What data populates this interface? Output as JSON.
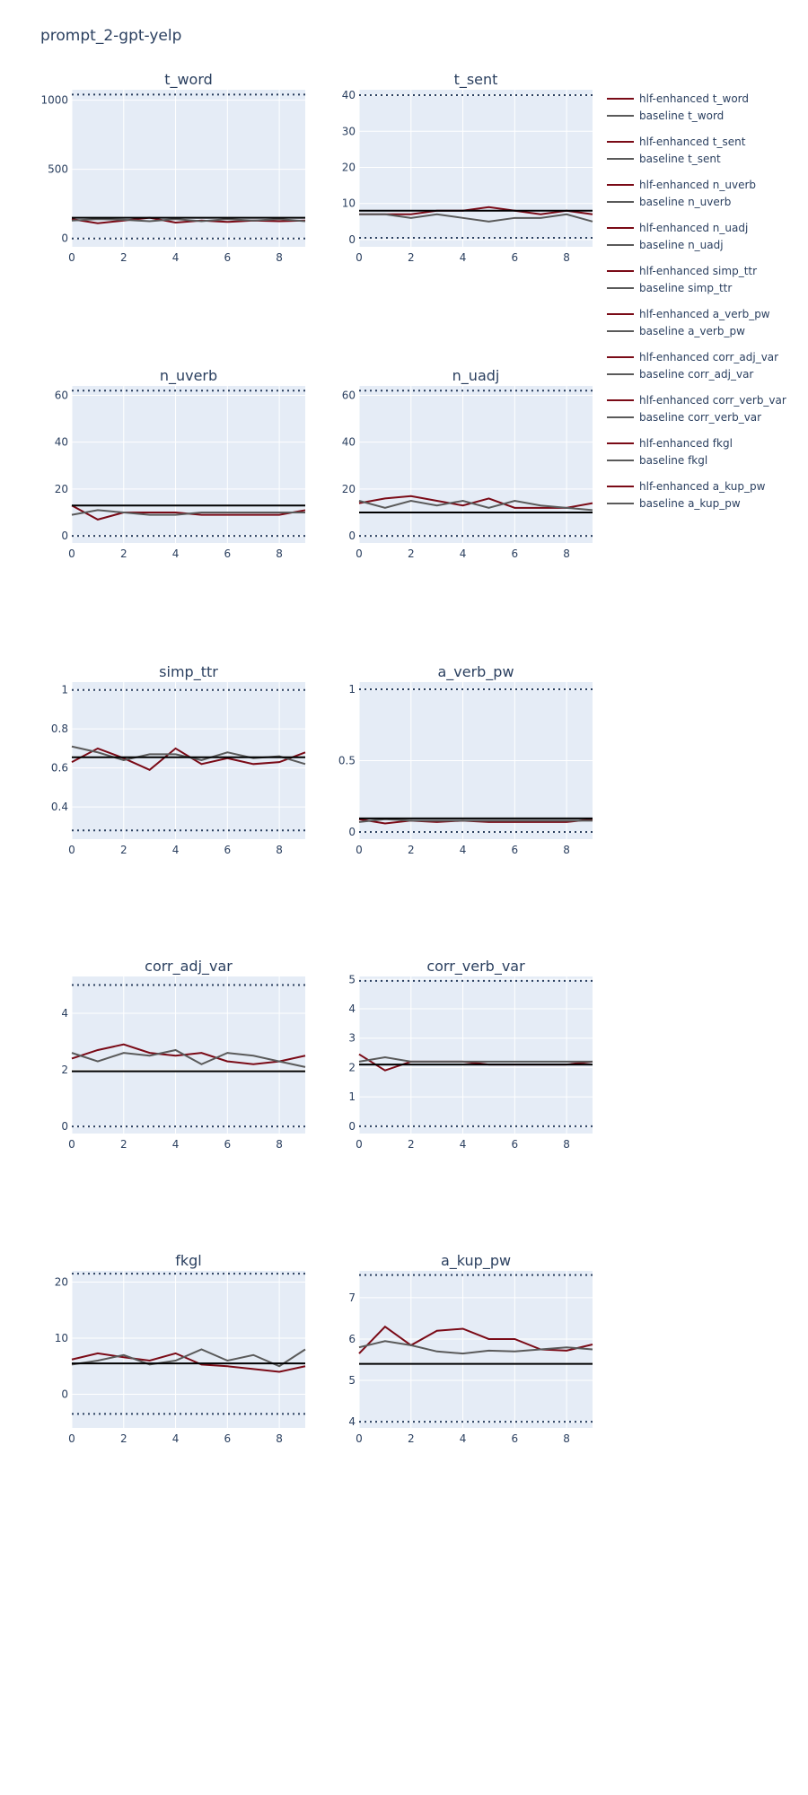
{
  "page_title": "prompt_2-gpt-yelp",
  "colors": {
    "plot_bg": "#e5ecf6",
    "grid": "#ffffff",
    "hlf": "#7a0a16",
    "baseline": "#5a5a5a",
    "reference": "#000000",
    "bounds": "#2a3f5f",
    "text": "#2a3f5f"
  },
  "chart_data": [
    {
      "type": "line",
      "title": "t_word",
      "x": [
        0,
        1,
        2,
        3,
        4,
        5,
        6,
        7,
        8,
        9
      ],
      "xticks": [
        0,
        2,
        4,
        6,
        8
      ],
      "xlim": [
        0,
        9
      ],
      "yticks": [
        0,
        500,
        1000
      ],
      "ytick_labels": [
        "0",
        "500",
        "1000"
      ],
      "ylim": [
        -60,
        1075
      ],
      "reference_line": 150,
      "bounds": [
        0,
        1040
      ],
      "series": [
        {
          "name": "hlf-enhanced t_word",
          "values": [
            140,
            110,
            130,
            150,
            115,
            130,
            120,
            130,
            125,
            130
          ]
        },
        {
          "name": "baseline t_word",
          "values": [
            130,
            140,
            135,
            125,
            140,
            125,
            140,
            130,
            140,
            125
          ]
        }
      ]
    },
    {
      "type": "line",
      "title": "t_sent",
      "x": [
        0,
        1,
        2,
        3,
        4,
        5,
        6,
        7,
        8,
        9
      ],
      "xticks": [
        0,
        2,
        4,
        6,
        8
      ],
      "xlim": [
        0,
        9
      ],
      "yticks": [
        0,
        10,
        20,
        30,
        40
      ],
      "ytick_labels": [
        "0",
        "10",
        "20",
        "30",
        "40"
      ],
      "ylim": [
        -2,
        41.5
      ],
      "reference_line": 8,
      "bounds": [
        0.5,
        40
      ],
      "series": [
        {
          "name": "hlf-enhanced t_sent",
          "values": [
            7,
            7,
            7,
            8,
            8,
            9,
            8,
            7,
            8,
            7
          ]
        },
        {
          "name": "baseline t_sent",
          "values": [
            7,
            7,
            6,
            7,
            6,
            5,
            6,
            6,
            7,
            5
          ]
        }
      ]
    },
    {
      "type": "line",
      "title": "n_uverb",
      "x": [
        0,
        1,
        2,
        3,
        4,
        5,
        6,
        7,
        8,
        9
      ],
      "xticks": [
        0,
        2,
        4,
        6,
        8
      ],
      "xlim": [
        0,
        9
      ],
      "yticks": [
        0,
        20,
        40,
        60
      ],
      "ytick_labels": [
        "0",
        "20",
        "40",
        "60"
      ],
      "ylim": [
        -3,
        64
      ],
      "reference_line": 13,
      "bounds": [
        0,
        62
      ],
      "series": [
        {
          "name": "hlf-enhanced n_uverb",
          "values": [
            13,
            7,
            10,
            10,
            10,
            9,
            9,
            9,
            9,
            11
          ]
        },
        {
          "name": "baseline n_uverb",
          "values": [
            9,
            11,
            10,
            9,
            9,
            10,
            10,
            10,
            10,
            10
          ]
        }
      ]
    },
    {
      "type": "line",
      "title": "n_uadj",
      "x": [
        0,
        1,
        2,
        3,
        4,
        5,
        6,
        7,
        8,
        9
      ],
      "xticks": [
        0,
        2,
        4,
        6,
        8
      ],
      "xlim": [
        0,
        9
      ],
      "yticks": [
        0,
        20,
        40,
        60
      ],
      "ytick_labels": [
        "0",
        "20",
        "40",
        "60"
      ],
      "ylim": [
        -3,
        64
      ],
      "reference_line": 10,
      "bounds": [
        0,
        62
      ],
      "series": [
        {
          "name": "hlf-enhanced n_uadj",
          "values": [
            14,
            16,
            17,
            15,
            13,
            16,
            12,
            12,
            12,
            14
          ]
        },
        {
          "name": "baseline n_uadj",
          "values": [
            15,
            12,
            15,
            13,
            15,
            12,
            15,
            13,
            12,
            11
          ]
        }
      ]
    },
    {
      "type": "line",
      "title": "simp_ttr",
      "x": [
        0,
        1,
        2,
        3,
        4,
        5,
        6,
        7,
        8,
        9
      ],
      "xticks": [
        0,
        2,
        4,
        6,
        8
      ],
      "xlim": [
        0,
        9
      ],
      "yticks": [
        0.4,
        0.6,
        0.8,
        1
      ],
      "ytick_labels": [
        "0.4",
        "0.6",
        "0.8",
        "1"
      ],
      "ylim": [
        0.235,
        1.04
      ],
      "reference_line": 0.655,
      "bounds": [
        0.28,
        1.0
      ],
      "series": [
        {
          "name": "hlf-enhanced simp_ttr",
          "values": [
            0.63,
            0.7,
            0.65,
            0.59,
            0.7,
            0.62,
            0.65,
            0.62,
            0.63,
            0.68
          ]
        },
        {
          "name": "baseline simp_ttr",
          "values": [
            0.71,
            0.68,
            0.64,
            0.67,
            0.67,
            0.64,
            0.68,
            0.65,
            0.66,
            0.62
          ]
        }
      ]
    },
    {
      "type": "line",
      "title": "a_verb_pw",
      "x": [
        0,
        1,
        2,
        3,
        4,
        5,
        6,
        7,
        8,
        9
      ],
      "xticks": [
        0,
        2,
        4,
        6,
        8
      ],
      "xlim": [
        0,
        9
      ],
      "yticks": [
        0,
        0.5,
        1
      ],
      "ytick_labels": [
        "0",
        "0.5",
        "1"
      ],
      "ylim": [
        -0.05,
        1.05
      ],
      "reference_line": 0.095,
      "bounds": [
        0,
        1
      ],
      "series": [
        {
          "name": "hlf-enhanced a_verb_pw",
          "values": [
            0.09,
            0.06,
            0.08,
            0.07,
            0.08,
            0.07,
            0.07,
            0.07,
            0.07,
            0.09
          ]
        },
        {
          "name": "baseline a_verb_pw",
          "values": [
            0.07,
            0.09,
            0.08,
            0.08,
            0.08,
            0.08,
            0.08,
            0.08,
            0.08,
            0.08
          ]
        }
      ]
    },
    {
      "type": "line",
      "title": "corr_adj_var",
      "x": [
        0,
        1,
        2,
        3,
        4,
        5,
        6,
        7,
        8,
        9
      ],
      "xticks": [
        0,
        2,
        4,
        6,
        8
      ],
      "xlim": [
        0,
        9
      ],
      "yticks": [
        0,
        2,
        4
      ],
      "ytick_labels": [
        "0",
        "2",
        "4"
      ],
      "ylim": [
        -0.25,
        5.3
      ],
      "reference_line": 1.95,
      "bounds": [
        0,
        5
      ],
      "series": [
        {
          "name": "hlf-enhanced corr_adj_var",
          "values": [
            2.4,
            2.7,
            2.9,
            2.6,
            2.5,
            2.6,
            2.3,
            2.2,
            2.3,
            2.5
          ]
        },
        {
          "name": "baseline corr_adj_var",
          "values": [
            2.6,
            2.3,
            2.6,
            2.5,
            2.7,
            2.2,
            2.6,
            2.5,
            2.3,
            2.1
          ]
        }
      ]
    },
    {
      "type": "line",
      "title": "corr_verb_var",
      "x": [
        0,
        1,
        2,
        3,
        4,
        5,
        6,
        7,
        8,
        9
      ],
      "xticks": [
        0,
        2,
        4,
        6,
        8
      ],
      "xlim": [
        0,
        9
      ],
      "yticks": [
        0,
        1,
        2,
        3,
        4,
        5
      ],
      "ytick_labels": [
        "0",
        "1",
        "2",
        "3",
        "4",
        "5"
      ],
      "ylim": [
        -0.25,
        5.1
      ],
      "reference_line": 2.1,
      "bounds": [
        0,
        4.95
      ],
      "series": [
        {
          "name": "hlf-enhanced corr_verb_var",
          "values": [
            2.45,
            1.9,
            2.2,
            2.2,
            2.2,
            2.1,
            2.1,
            2.1,
            2.1,
            2.2
          ]
        },
        {
          "name": "baseline corr_verb_var",
          "values": [
            2.2,
            2.35,
            2.2,
            2.2,
            2.2,
            2.2,
            2.2,
            2.2,
            2.2,
            2.2
          ]
        }
      ]
    },
    {
      "type": "line",
      "title": "fkgl",
      "x": [
        0,
        1,
        2,
        3,
        4,
        5,
        6,
        7,
        8,
        9
      ],
      "xticks": [
        0,
        2,
        4,
        6,
        8
      ],
      "xlim": [
        0,
        9
      ],
      "yticks": [
        0,
        10,
        20
      ],
      "ytick_labels": [
        "0",
        "10",
        "20"
      ],
      "ylim": [
        -6,
        22
      ],
      "reference_line": 5.5,
      "bounds": [
        -3.5,
        21.5
      ],
      "series": [
        {
          "name": "hlf-enhanced fkgl",
          "values": [
            6.2,
            7.3,
            6.6,
            6.0,
            7.3,
            5.3,
            5.0,
            4.5,
            4.0,
            5.0
          ]
        },
        {
          "name": "baseline fkgl",
          "values": [
            5.3,
            6.0,
            7.0,
            5.3,
            6.0,
            8.0,
            6.0,
            7.0,
            5.0,
            8.0
          ]
        }
      ]
    },
    {
      "type": "line",
      "title": "a_kup_pw",
      "x": [
        0,
        1,
        2,
        3,
        4,
        5,
        6,
        7,
        8,
        9
      ],
      "xticks": [
        0,
        2,
        4,
        6,
        8
      ],
      "xlim": [
        0,
        9
      ],
      "yticks": [
        4,
        5,
        6,
        7
      ],
      "ytick_labels": [
        "4",
        "5",
        "6",
        "7"
      ],
      "ylim": [
        3.85,
        7.65
      ],
      "reference_line": 5.4,
      "bounds": [
        4.0,
        7.55
      ],
      "series": [
        {
          "name": "hlf-enhanced a_kup_pw",
          "values": [
            5.65,
            6.3,
            5.85,
            6.2,
            6.25,
            6.0,
            6.0,
            5.75,
            5.72,
            5.87
          ]
        },
        {
          "name": "baseline a_kup_pw",
          "values": [
            5.8,
            5.95,
            5.85,
            5.7,
            5.65,
            5.72,
            5.7,
            5.75,
            5.8,
            5.75
          ]
        }
      ]
    }
  ],
  "legend": {
    "items": [
      {
        "label": "hlf-enhanced t_word",
        "kind": "hlf"
      },
      {
        "label": "baseline t_word",
        "kind": "baseline"
      },
      {
        "label": "hlf-enhanced t_sent",
        "kind": "hlf"
      },
      {
        "label": "baseline t_sent",
        "kind": "baseline"
      },
      {
        "label": "hlf-enhanced n_uverb",
        "kind": "hlf"
      },
      {
        "label": "baseline n_uverb",
        "kind": "baseline"
      },
      {
        "label": "hlf-enhanced n_uadj",
        "kind": "hlf"
      },
      {
        "label": "baseline n_uadj",
        "kind": "baseline"
      },
      {
        "label": "hlf-enhanced simp_ttr",
        "kind": "hlf"
      },
      {
        "label": "baseline simp_ttr",
        "kind": "baseline"
      },
      {
        "label": "hlf-enhanced a_verb_pw",
        "kind": "hlf"
      },
      {
        "label": "baseline a_verb_pw",
        "kind": "baseline"
      },
      {
        "label": "hlf-enhanced corr_adj_var",
        "kind": "hlf"
      },
      {
        "label": "baseline corr_adj_var",
        "kind": "baseline"
      },
      {
        "label": "hlf-enhanced corr_verb_var",
        "kind": "hlf"
      },
      {
        "label": "baseline corr_verb_var",
        "kind": "baseline"
      },
      {
        "label": "hlf-enhanced fkgl",
        "kind": "hlf"
      },
      {
        "label": "baseline fkgl",
        "kind": "baseline"
      },
      {
        "label": "hlf-enhanced a_kup_pw",
        "kind": "hlf"
      },
      {
        "label": "baseline a_kup_pw",
        "kind": "baseline"
      }
    ]
  }
}
